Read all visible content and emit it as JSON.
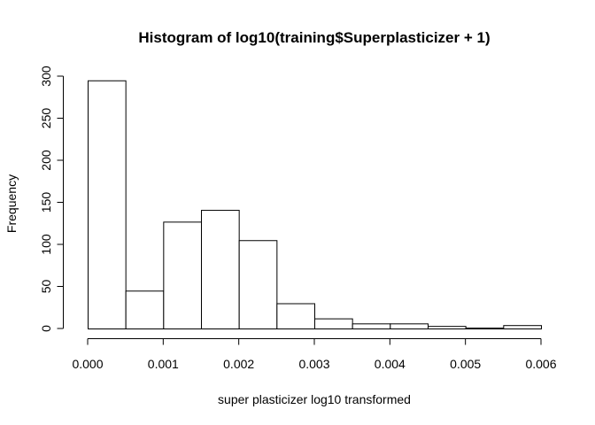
{
  "chart_data": {
    "type": "bar",
    "title": "Histogram of log10(training$Superplasticizer + 1)",
    "xlabel": "super plasticizer log10 transformed",
    "ylabel": "Frequency",
    "bin_edges": [
      0.0,
      0.0005,
      0.001,
      0.0015,
      0.002,
      0.0025,
      0.003,
      0.0035,
      0.004,
      0.0045,
      0.005,
      0.0055,
      0.006
    ],
    "values": [
      295,
      45,
      127,
      141,
      105,
      30,
      12,
      6,
      6,
      3,
      1,
      4
    ],
    "xlim": [
      0.0,
      0.006
    ],
    "ylim": [
      0,
      300
    ],
    "x_ticks": [
      0.0,
      0.001,
      0.002,
      0.003,
      0.004,
      0.005,
      0.006
    ],
    "x_tick_labels": [
      "0.000",
      "0.001",
      "0.002",
      "0.003",
      "0.004",
      "0.005",
      "0.006"
    ],
    "y_ticks": [
      0,
      50,
      100,
      150,
      200,
      250,
      300
    ],
    "y_tick_labels": [
      "0",
      "50",
      "100",
      "150",
      "200",
      "250",
      "300"
    ],
    "grid": false,
    "bar_fill": "#ffffff",
    "bar_stroke": "#000000"
  }
}
